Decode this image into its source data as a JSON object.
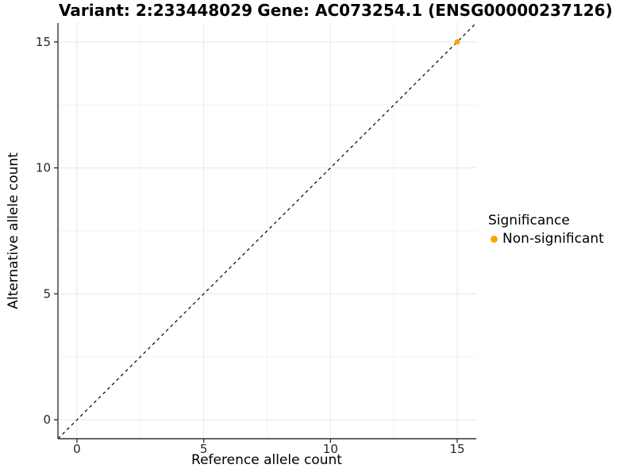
{
  "chart_data": {
    "type": "scatter",
    "titles": {
      "left": "Variant: 2:233448029",
      "right": "Gene: AC073254.1 (ENSG00000237126)"
    },
    "xlabel": "Reference allele count",
    "ylabel": "Alternative allele count",
    "xlim": [
      -0.75,
      15.75
    ],
    "ylim": [
      -0.75,
      15.75
    ],
    "xticks": [
      0,
      5,
      10,
      15
    ],
    "yticks": [
      0,
      5,
      10,
      15
    ],
    "xminor": [
      2.5,
      7.5,
      12.5
    ],
    "yminor": [
      2.5,
      7.5,
      12.5
    ],
    "grid": true,
    "series": [
      {
        "name": "Non-significant",
        "color": "#FFA500",
        "points": [
          {
            "x": 15,
            "y": 15
          }
        ]
      }
    ],
    "reference_line": {
      "type": "identity",
      "style": "dashed",
      "color": "#000000",
      "from": [
        -0.75,
        -0.75
      ],
      "to": [
        15.75,
        15.75
      ]
    },
    "legend": {
      "title": "Significance",
      "position": "right",
      "entries": [
        {
          "label": "Non-significant",
          "color": "#FFA500"
        }
      ]
    }
  },
  "colors": {
    "background": "#FFFFFF",
    "axis": "#333333",
    "tick_label": "#262626",
    "grid_major": "#E7E7E7",
    "grid_minor": "#F3F3F3",
    "title": "#000000"
  }
}
